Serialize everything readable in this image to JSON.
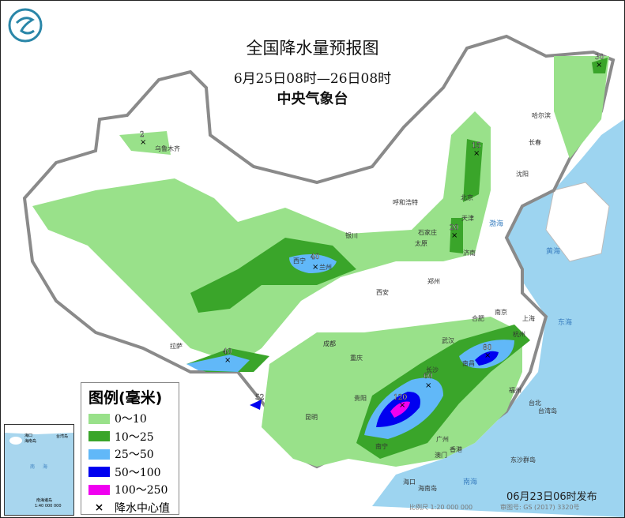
{
  "header": {
    "title": "全国降水量预报图",
    "period": "6月25日08时—26日08时",
    "issuer": "中央气象台"
  },
  "legend": {
    "title": "图例(毫米)",
    "items": [
      {
        "label": "0～10",
        "color": "#99e18a"
      },
      {
        "label": "10～25",
        "color": "#3aa52a"
      },
      {
        "label": "25～50",
        "color": "#61b8f8"
      },
      {
        "label": "50～100",
        "color": "#0000f0"
      },
      {
        "label": "100～250",
        "color": "#f000f0"
      }
    ],
    "center_label": "降水中心值",
    "center_symbol": "×"
  },
  "colors": {
    "sea": "#9dd4f0",
    "land_border": "#8a8a8a"
  },
  "centers": [
    "2",
    "30",
    "15",
    "20",
    "40",
    "40",
    "52",
    "60",
    "80",
    "120"
  ],
  "cities": [
    "乌鲁木齐",
    "哈尔滨",
    "长春",
    "沈阳",
    "呼和浩特",
    "北京",
    "天津",
    "石家庄",
    "太原",
    "济南",
    "银川",
    "西宁",
    "兰州",
    "郑州",
    "西安",
    "合肥",
    "南京",
    "上海",
    "杭州",
    "武汉",
    "成都",
    "重庆",
    "拉萨",
    "长沙",
    "南昌",
    "福州",
    "台北",
    "贵阳",
    "昆明",
    "南宁",
    "广州",
    "香港",
    "澳门",
    "海口",
    "台湾岛",
    "海南岛",
    "东沙群岛"
  ],
  "seas": [
    "渤海",
    "黄海",
    "东海",
    "南海"
  ],
  "inset": {
    "label": "南海诸岛",
    "scale": "1:40 000 000",
    "places": [
      "海口",
      "海南岛",
      "台湾岛",
      "南",
      "海"
    ]
  },
  "footer": {
    "issued": "06月23日06时发布",
    "scale": "比例尺 1:20 000 000",
    "review": "审图号: GS (2017) 3320号"
  }
}
